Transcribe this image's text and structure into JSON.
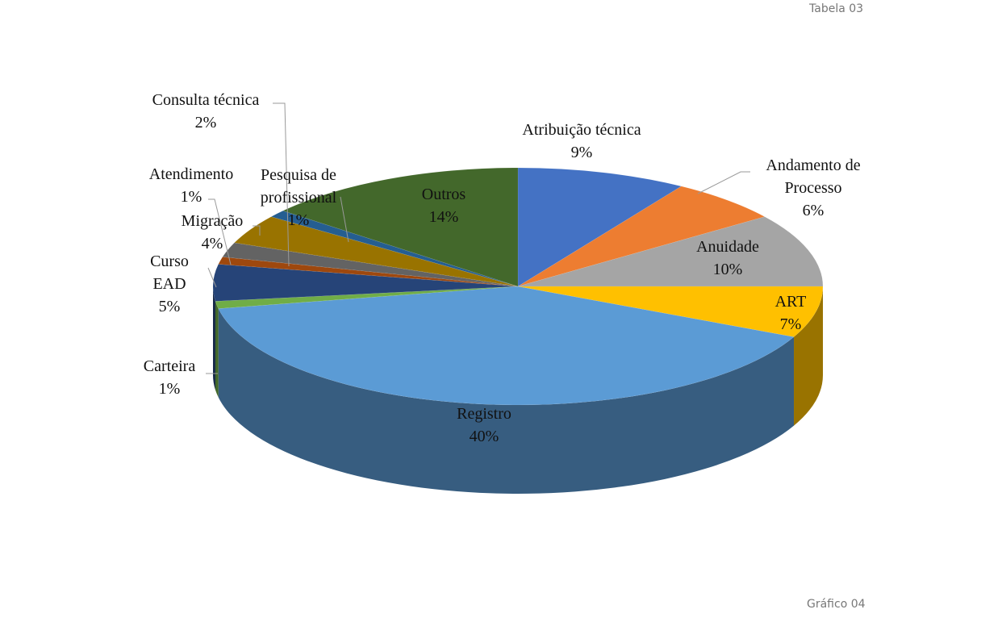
{
  "header": "Tabela 03",
  "footer": "Gráfico 04",
  "chart_data": {
    "type": "pie",
    "categories": [
      "Atribuição técnica",
      "Andamento de Processo",
      "Anuidade",
      "ART",
      "Registro",
      "Carteira",
      "Curso EAD",
      "Atendimento",
      "Consulta técnica",
      "Migração",
      "Pesquisa de profissional",
      "Outros"
    ],
    "values": [
      9,
      6,
      10,
      7,
      40,
      1,
      5,
      1,
      2,
      4,
      1,
      14
    ],
    "value_labels": [
      "9%",
      "6%",
      "10%",
      "7%",
      "40%",
      "1%",
      "5%",
      "1%",
      "2%",
      "4%",
      "1%",
      "14%"
    ],
    "colors": [
      "#4472c4",
      "#ed7d31",
      "#a5a5a5",
      "#ffc000",
      "#5b9bd5",
      "#70ad47",
      "#264478",
      "#9e480e",
      "#636363",
      "#997300",
      "#255e91",
      "#43682b"
    ]
  }
}
